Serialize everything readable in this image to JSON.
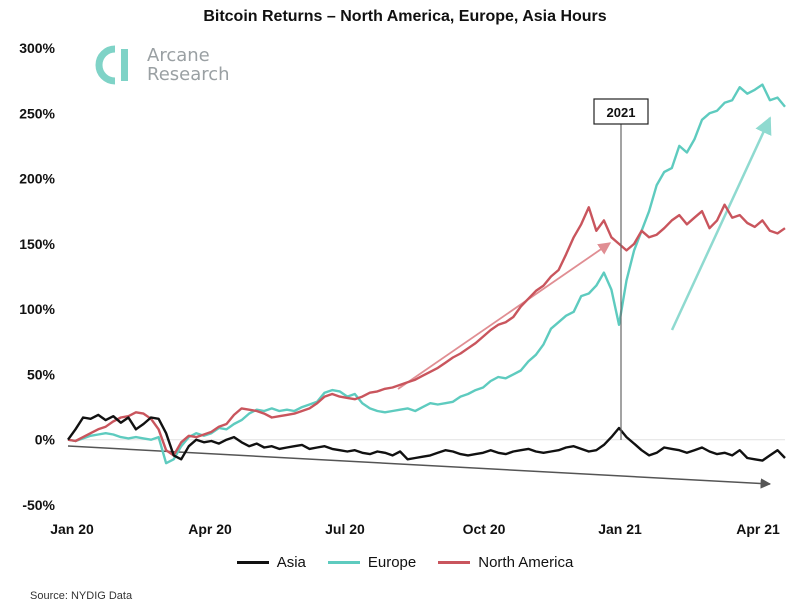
{
  "chart_data": {
    "type": "line",
    "title": "Bitcoin Returns – North America, Europe, Asia Hours",
    "ylim": [
      -50,
      300
    ],
    "yticks": [
      "300%",
      "250%",
      "200%",
      "150%",
      "100%",
      "50%",
      "0%",
      "-50%"
    ],
    "ytick_values": [
      300,
      250,
      200,
      150,
      100,
      50,
      0,
      -50
    ],
    "xticks": [
      "Jan 20",
      "Apr 20",
      "Jul 20",
      "Oct 20",
      "Jan 21",
      "Apr 21"
    ],
    "annotation": "2021",
    "series": [
      {
        "name": "Asia",
        "color": "#111111",
        "x": [
          0,
          5,
          10,
          15,
          20,
          25,
          30,
          35,
          40,
          45,
          50,
          55,
          60,
          65,
          70,
          75,
          80,
          85,
          90,
          95,
          100,
          105,
          110,
          115,
          120,
          125,
          130,
          135,
          140,
          145,
          150,
          155,
          160,
          165,
          170,
          175,
          180,
          185,
          190,
          195,
          200,
          205,
          210,
          215,
          220,
          225,
          230,
          235,
          240,
          245,
          250,
          255,
          260,
          265,
          270,
          275,
          280,
          285,
          290,
          295,
          300,
          305,
          310,
          315,
          320,
          325,
          330,
          335,
          340,
          345,
          350,
          355,
          360,
          365,
          370,
          375,
          380,
          385,
          390,
          395,
          400,
          405,
          410,
          415,
          420,
          425,
          430,
          435,
          440,
          445,
          450,
          455,
          460,
          465,
          470,
          475
        ],
        "y": [
          0,
          8,
          17,
          16,
          19,
          15,
          18,
          13,
          17,
          8,
          12,
          17,
          16,
          5,
          -12,
          -15,
          -5,
          0,
          -2,
          -1,
          -3,
          0,
          2,
          -2,
          -5,
          -3,
          -6,
          -5,
          -7,
          -6,
          -5,
          -4,
          -7,
          -6,
          -5,
          -7,
          -8,
          -9,
          -8,
          -10,
          -11,
          -9,
          -10,
          -12,
          -9,
          -15,
          -14,
          -13,
          -12,
          -10,
          -8,
          -9,
          -11,
          -12,
          -11,
          -10,
          -8,
          -10,
          -11,
          -9,
          -8,
          -7,
          -9,
          -10,
          -9,
          -8,
          -6,
          -5,
          -7,
          -9,
          -8,
          -4,
          2,
          9,
          2,
          -3,
          -8,
          -12,
          -10,
          -6,
          -7,
          -8,
          -10,
          -8,
          -6,
          -9,
          -11,
          -10,
          -12,
          -8,
          -14,
          -15,
          -16,
          -12,
          -8,
          -14
        ],
        "values_note": ""
      },
      {
        "name": "Europe",
        "color": "#5ecbbf",
        "x": [
          0,
          5,
          10,
          15,
          20,
          25,
          30,
          35,
          40,
          45,
          50,
          55,
          60,
          65,
          70,
          75,
          80,
          85,
          90,
          95,
          100,
          105,
          110,
          115,
          120,
          125,
          130,
          135,
          140,
          145,
          150,
          155,
          160,
          165,
          170,
          175,
          180,
          185,
          190,
          195,
          200,
          205,
          210,
          215,
          220,
          225,
          230,
          235,
          240,
          245,
          250,
          255,
          260,
          265,
          270,
          275,
          280,
          285,
          290,
          295,
          300,
          305,
          310,
          315,
          320,
          325,
          330,
          335,
          340,
          345,
          350,
          355,
          360,
          365,
          370,
          375,
          380,
          385,
          390,
          395,
          400,
          405,
          410,
          415,
          420,
          425,
          430,
          435,
          440,
          445,
          450,
          455,
          460,
          465,
          470,
          475
        ],
        "y": [
          0,
          -1,
          1,
          3,
          4,
          5,
          4,
          2,
          1,
          2,
          1,
          0,
          2,
          -18,
          -15,
          -5,
          2,
          5,
          3,
          5,
          9,
          8,
          12,
          15,
          20,
          23,
          22,
          24,
          22,
          23,
          22,
          25,
          27,
          29,
          36,
          38,
          37,
          33,
          35,
          28,
          24,
          22,
          21,
          22,
          23,
          24,
          22,
          25,
          28,
          27,
          28,
          29,
          33,
          35,
          38,
          40,
          45,
          48,
          47,
          50,
          53,
          60,
          65,
          73,
          85,
          90,
          95,
          98,
          110,
          112,
          118,
          128,
          115,
          88,
          122,
          145,
          160,
          175,
          195,
          205,
          208,
          225,
          220,
          230,
          245,
          250,
          252,
          258,
          260,
          270,
          265,
          268,
          272,
          260,
          262,
          255
        ],
        "values_note": ""
      },
      {
        "name": "North America",
        "color": "#c9555d",
        "x": [
          0,
          5,
          10,
          15,
          20,
          25,
          30,
          35,
          40,
          45,
          50,
          55,
          60,
          65,
          70,
          75,
          80,
          85,
          90,
          95,
          100,
          105,
          110,
          115,
          120,
          125,
          130,
          135,
          140,
          145,
          150,
          155,
          160,
          165,
          170,
          175,
          180,
          185,
          190,
          195,
          200,
          205,
          210,
          215,
          220,
          225,
          230,
          235,
          240,
          245,
          250,
          255,
          260,
          265,
          270,
          275,
          280,
          285,
          290,
          295,
          300,
          305,
          310,
          315,
          320,
          325,
          330,
          335,
          340,
          345,
          350,
          355,
          360,
          365,
          370,
          375,
          380,
          385,
          390,
          395,
          400,
          405,
          410,
          415,
          420,
          425,
          430,
          435,
          440,
          445,
          450,
          455,
          460,
          465,
          470,
          475
        ],
        "y": [
          0,
          -1,
          2,
          5,
          8,
          10,
          14,
          17,
          18,
          21,
          20,
          16,
          8,
          -8,
          -12,
          -2,
          3,
          2,
          4,
          6,
          10,
          12,
          19,
          24,
          23,
          22,
          20,
          17,
          18,
          19,
          20,
          22,
          24,
          28,
          33,
          35,
          33,
          32,
          31,
          33,
          36,
          37,
          39,
          40,
          42,
          44,
          46,
          49,
          52,
          55,
          59,
          63,
          66,
          70,
          74,
          79,
          84,
          88,
          90,
          94,
          102,
          108,
          114,
          118,
          125,
          130,
          142,
          155,
          165,
          178,
          160,
          168,
          155,
          150,
          145,
          150,
          160,
          155,
          157,
          162,
          168,
          172,
          165,
          170,
          175,
          162,
          168,
          180,
          170,
          172,
          166,
          163,
          168,
          160,
          158,
          162
        ],
        "values_note": ""
      }
    ]
  },
  "logo": {
    "line1": "Arcane",
    "line2": "Research"
  },
  "legend": [
    {
      "label": "Asia",
      "color": "#111111"
    },
    {
      "label": "Europe",
      "color": "#5ecbbf"
    },
    {
      "label": "North America",
      "color": "#c9555d"
    }
  ],
  "source": "Source: NYDIG Data"
}
